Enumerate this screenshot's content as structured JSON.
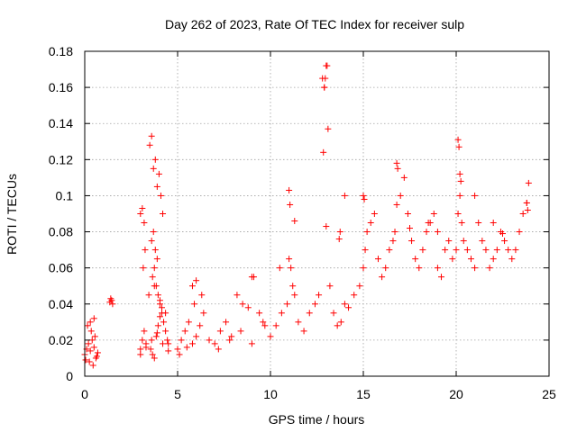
{
  "chart_data": {
    "type": "scatter",
    "title": "Day 262 of 2023, Rate Of TEC Index for receiver sulp",
    "xlabel": "GPS time / hours",
    "ylabel": "ROTI / TECUs",
    "xlim": [
      0,
      25
    ],
    "ylim": [
      0,
      0.18
    ],
    "xticks": [
      0,
      5,
      10,
      15,
      20,
      25
    ],
    "xtick_labels": [
      "0",
      "5",
      "10",
      "15",
      "20",
      "25"
    ],
    "yticks": [
      0,
      0.02,
      0.04,
      0.06,
      0.08,
      0.1,
      0.12,
      0.14,
      0.16,
      0.18
    ],
    "ytick_labels": [
      "0",
      "0.02",
      "0.04",
      "0.06",
      "0.08",
      "0.1",
      "0.12",
      "0.14",
      "0.16",
      "0.18"
    ],
    "grid": true,
    "marker": "plus",
    "color": "#ff0000",
    "series": [
      {
        "name": "ROTI",
        "x": [
          0.0,
          0.1,
          0.2,
          0.3,
          0.4,
          0.5,
          0.6,
          0.7,
          0.15,
          0.35,
          0.55,
          0.25,
          0.45,
          0.65,
          0.05,
          0.3,
          0.5,
          1.35,
          1.4,
          1.45,
          1.5,
          3.0,
          3.1,
          3.2,
          3.3,
          3.0,
          3.1,
          3.2,
          3.15,
          3.25,
          3.5,
          3.6,
          3.7,
          3.8,
          3.9,
          4.0,
          4.1,
          4.2,
          3.6,
          3.7,
          3.8,
          3.9,
          3.65,
          3.75,
          3.85,
          3.95,
          4.05,
          4.15,
          4.25,
          4.35,
          4.45,
          4.5,
          3.55,
          3.65,
          3.75,
          3.85,
          3.95,
          4.05,
          4.15,
          3.0,
          3.3,
          3.6,
          3.9,
          4.2,
          4.5,
          3.45,
          3.75,
          4.05,
          4.35,
          5.0,
          5.2,
          5.4,
          5.6,
          5.8,
          6.0,
          6.2,
          6.4,
          5.1,
          5.5,
          5.9,
          6.3,
          6.7,
          7.0,
          7.3,
          7.6,
          7.9,
          8.2,
          8.5,
          8.8,
          9.1,
          9.4,
          9.7,
          7.2,
          7.8,
          8.4,
          9.0,
          9.6,
          10.0,
          10.3,
          10.6,
          10.9,
          11.0,
          11.1,
          11.2,
          11.3,
          11.5,
          11.8,
          12.1,
          12.4,
          12.6,
          12.8,
          12.85,
          12.9,
          13.0,
          13.1,
          13.2,
          13.4,
          13.6,
          13.8,
          14.0,
          14.2,
          14.5,
          14.8,
          15.0,
          15.1,
          15.2,
          15.4,
          15.6,
          15.8,
          16.0,
          16.2,
          16.4,
          16.6,
          16.7,
          16.8,
          17.0,
          17.2,
          17.4,
          17.6,
          17.8,
          18.0,
          18.2,
          18.4,
          18.6,
          18.8,
          19.0,
          19.2,
          19.4,
          19.6,
          19.8,
          20.0,
          20.1,
          20.2,
          20.3,
          20.4,
          20.6,
          20.8,
          21.0,
          21.2,
          21.4,
          21.6,
          21.8,
          22.0,
          22.2,
          22.4,
          22.6,
          22.8,
          23.0,
          23.2,
          23.4,
          23.6,
          23.8,
          23.9,
          11.0,
          11.05,
          11.3,
          13.0,
          13.05,
          12.95,
          12.9,
          13.7,
          13.75,
          15.0,
          15.05,
          16.8,
          16.85,
          20.1,
          20.15,
          20.2,
          20.25,
          23.8,
          23.85,
          21.0,
          22.5,
          9.0,
          10.5,
          6.0,
          5.8,
          14.0,
          18.5,
          19.0,
          22.0,
          17.5
        ],
        "y": [
          0.012,
          0.015,
          0.018,
          0.014,
          0.02,
          0.016,
          0.01,
          0.013,
          0.028,
          0.025,
          0.022,
          0.008,
          0.006,
          0.011,
          0.009,
          0.03,
          0.032,
          0.041,
          0.043,
          0.042,
          0.04,
          0.015,
          0.02,
          0.025,
          0.018,
          0.09,
          0.093,
          0.085,
          0.06,
          0.07,
          0.128,
          0.133,
          0.115,
          0.12,
          0.105,
          0.112,
          0.1,
          0.09,
          0.075,
          0.08,
          0.07,
          0.065,
          0.055,
          0.06,
          0.05,
          0.045,
          0.04,
          0.035,
          0.03,
          0.025,
          0.02,
          0.018,
          0.015,
          0.012,
          0.01,
          0.022,
          0.028,
          0.033,
          0.038,
          0.012,
          0.016,
          0.02,
          0.024,
          0.018,
          0.014,
          0.045,
          0.05,
          0.042,
          0.035,
          0.015,
          0.02,
          0.025,
          0.03,
          0.018,
          0.022,
          0.028,
          0.035,
          0.012,
          0.016,
          0.04,
          0.045,
          0.02,
          0.018,
          0.025,
          0.03,
          0.022,
          0.045,
          0.04,
          0.038,
          0.055,
          0.035,
          0.028,
          0.015,
          0.02,
          0.025,
          0.018,
          0.03,
          0.022,
          0.028,
          0.035,
          0.04,
          0.065,
          0.06,
          0.05,
          0.045,
          0.03,
          0.025,
          0.035,
          0.04,
          0.045,
          0.165,
          0.124,
          0.16,
          0.172,
          0.137,
          0.05,
          0.035,
          0.028,
          0.03,
          0.04,
          0.038,
          0.045,
          0.05,
          0.06,
          0.07,
          0.08,
          0.085,
          0.09,
          0.065,
          0.055,
          0.06,
          0.07,
          0.075,
          0.08,
          0.095,
          0.1,
          0.11,
          0.09,
          0.075,
          0.065,
          0.06,
          0.07,
          0.08,
          0.085,
          0.09,
          0.06,
          0.055,
          0.07,
          0.075,
          0.065,
          0.07,
          0.09,
          0.1,
          0.085,
          0.075,
          0.07,
          0.065,
          0.06,
          0.085,
          0.075,
          0.07,
          0.06,
          0.065,
          0.07,
          0.08,
          0.075,
          0.07,
          0.065,
          0.07,
          0.08,
          0.09,
          0.096,
          0.107,
          0.103,
          0.095,
          0.086,
          0.083,
          0.172,
          0.165,
          0.16,
          0.076,
          0.08,
          0.1,
          0.098,
          0.118,
          0.115,
          0.131,
          0.127,
          0.112,
          0.108,
          0.096,
          0.092,
          0.1,
          0.079,
          0.055,
          0.06,
          0.053,
          0.05,
          0.1,
          0.085,
          0.08,
          0.085,
          0.082
        ]
      }
    ]
  }
}
